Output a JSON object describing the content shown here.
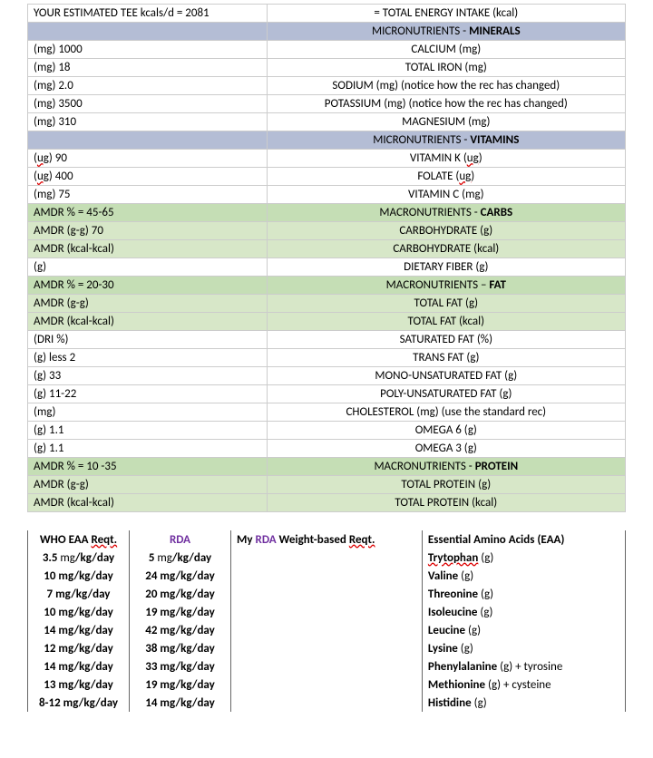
{
  "top": {
    "tee_label": "YOUR ESTIMATED TEE kcals/d = 2081",
    "tee_right": "= TOTAL ENERGY INTAKE (kcal)"
  },
  "sections": {
    "minerals_hdr_prefix": "MICRONUTRIENTS - ",
    "minerals_hdr_bold": "MINERALS",
    "vitamins_hdr_prefix": "MICRONUTRIENTS - ",
    "vitamins_hdr_bold": "VITAMINS",
    "carbs_hdr_prefix": "MACRONUTRIENTS - ",
    "carbs_hdr_bold": "CARBS",
    "fat_hdr_prefix": "MACRONUTRIENTS – ",
    "fat_hdr_bold": "FAT",
    "protein_hdr_prefix": "MACRONUTRIENTS - ",
    "protein_hdr_bold": "PROTEIN",
    "carbs_amdr": "AMDR % = 45-65",
    "fat_amdr": "AMDR % = 20-30",
    "protein_amdr": "AMDR % = 10 -35"
  },
  "minerals": [
    {
      "l": "(mg) 1000",
      "r": "CALCIUM (mg)"
    },
    {
      "l": "(mg) 18",
      "r": "TOTAL IRON (mg)"
    },
    {
      "l": "(mg) 2.0",
      "r": "SODIUM (mg) (notice how the rec has changed)"
    },
    {
      "l": "(mg) 3500",
      "r": "POTASSIUM (mg) (notice how the rec has changed)"
    },
    {
      "l": "(mg) 310",
      "r": "MAGNESIUM (mg)"
    }
  ],
  "vitamins": [
    {
      "l_pre": "(",
      "l_u": "ug",
      "l_post": ") 90",
      "r_pre": "VITAMIN K (",
      "r_u": "ug",
      "r_post": ")"
    },
    {
      "l_pre": "(",
      "l_u": "ug",
      "l_post": ") 400",
      "r_pre": "FOLATE (",
      "r_u": "ug",
      "r_post": ")"
    },
    {
      "l_pre": "(mg) 75",
      "l_u": "",
      "l_post": "",
      "r_pre": "VITAMIN C (mg)",
      "r_u": "",
      "r_post": ""
    }
  ],
  "carbs": [
    {
      "l": "AMDR (g-g) 70",
      "r": "CARBOHYDRATE (g)"
    },
    {
      "l": "AMDR (kcal-kcal)",
      "r": "CARBOHYDRATE (kcal)"
    },
    {
      "l": "(g)",
      "r": "DIETARY FIBER (g)"
    }
  ],
  "fat": [
    {
      "l": "AMDR (g-g)",
      "r": "TOTAL FAT (g)"
    },
    {
      "l": "AMDR (kcal-kcal)",
      "r": "TOTAL FAT (kcal)"
    },
    {
      "l": "(DRI %)",
      "r": "SATURATED FAT (%)"
    },
    {
      "l": "(g)  less 2",
      "r": "TRANS FAT (g)"
    },
    {
      "l": "(g) 33",
      "r": "MONO-UNSATURATED FAT (g)"
    },
    {
      "l": "(g) 11-22",
      "r": "POLY-UNSATURATED FAT (g)"
    },
    {
      "l": "(mg)",
      "r": "CHOLESTEROL (mg) (use the standard rec)"
    },
    {
      "l": "(g) 1.1",
      "r": "OMEGA 6 (g)"
    },
    {
      "l": "(g) 1.1",
      "r": "OMEGA 3 (g)"
    }
  ],
  "protein": [
    {
      "l": "AMDR (g-g)",
      "r": "TOTAL PROTEIN (g)"
    },
    {
      "l": "AMDR (kcal-kcal)",
      "r": "TOTAL PROTEIN (kcal)"
    }
  ],
  "amino_hdr": {
    "c1_pre": "WHO EAA ",
    "c1_u": "Reqt.",
    "c2": "RDA",
    "c3_pre": "My ",
    "c3_mid": "RDA",
    "c3_post": " Weight-based ",
    "c3_u": "Reqt.",
    "c4": "Essential Amino Acids (EAA)"
  },
  "amino": [
    {
      "who_n": "3.5",
      "who_unit": " mg",
      "who_rest": "/kg/day",
      "rda_n": "5",
      "rda_unit": " mg",
      "rda_rest": "/kg/day",
      "name": "Trytophan",
      "g": " (g)",
      "wavy": true
    },
    {
      "who_n": "10 mg/kg/day",
      "who_unit": "",
      "who_rest": "",
      "rda_n": "24 mg/kg/day",
      "rda_unit": "",
      "rda_rest": "",
      "name": "Valine",
      "g": " (g)",
      "wavy": false
    },
    {
      "who_n": "7 mg/kg/day",
      "who_unit": "",
      "who_rest": "",
      "rda_n": "20 mg/kg/day",
      "rda_unit": "",
      "rda_rest": "",
      "name": "Threonine",
      "g": " (g)",
      "wavy": false
    },
    {
      "who_n": "10 mg/kg/day",
      "who_unit": "",
      "who_rest": "",
      "rda_n": "19 mg/kg/day",
      "rda_unit": "",
      "rda_rest": "",
      "name": "Isoleucine",
      "g": " (g)",
      "wavy": false
    },
    {
      "who_n": "14 mg/kg/day",
      "who_unit": "",
      "who_rest": "",
      "rda_n": "42 mg/kg/day",
      "rda_unit": "",
      "rda_rest": "",
      "name": "Leucine",
      "g": " (g)",
      "wavy": false
    },
    {
      "who_n": "12 mg/kg/day",
      "who_unit": "",
      "who_rest": "",
      "rda_n": "38 mg/kg/day",
      "rda_unit": "",
      "rda_rest": "",
      "name": "Lysine",
      "g": " (g)",
      "wavy": false
    },
    {
      "who_n": "14 mg/kg/day",
      "who_unit": "",
      "who_rest": "",
      "rda_n": "33 mg/kg/day",
      "rda_unit": "",
      "rda_rest": "",
      "name": "Phenylalanine",
      "g": " (g) + tyrosine",
      "wavy": false
    },
    {
      "who_n": "13 mg/kg/day",
      "who_unit": "",
      "who_rest": "",
      "rda_n": "19 mg/kg/day",
      "rda_unit": "",
      "rda_rest": "",
      "name": "Methionine",
      "g": " (g) + cysteine",
      "wavy": false
    },
    {
      "who_n": "8-12 mg/kg/day",
      "who_unit": "",
      "who_rest": "",
      "rda_n": "14 mg/kg/day",
      "rda_unit": "",
      "rda_rest": "",
      "name": "Histidine",
      "g": " (g)",
      "wavy": false
    }
  ],
  "colors": {
    "hdr_blue": "#b4bdd5",
    "hdr_green": "#c5deb5",
    "hdr_greenish": "#d7e7c8",
    "rda_purple": "#7030a0"
  }
}
